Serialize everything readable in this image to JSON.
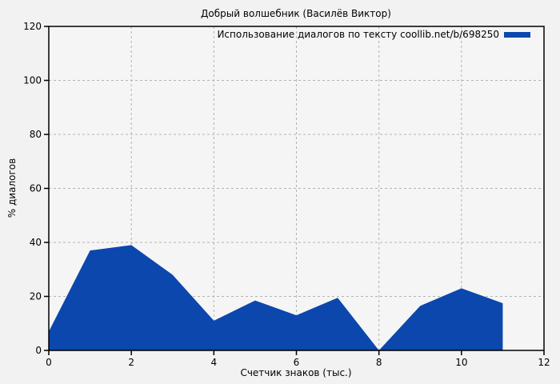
{
  "chart_data": {
    "type": "area",
    "title": "Добрый волшебник (Василёв Виктор)",
    "legend": "Использование диалогов по тексту coollib.net/b/698250",
    "xlabel": "Счетчик знаков (тыс.)",
    "ylabel": "% диалогов",
    "x": [
      0,
      1,
      2,
      3,
      4,
      5,
      6,
      7,
      8,
      9,
      10,
      11
    ],
    "values": [
      7,
      37,
      39,
      28,
      11,
      18.5,
      13,
      19.5,
      0,
      16.5,
      23,
      17.5
    ],
    "xlim": [
      0,
      12
    ],
    "ylim": [
      0,
      120
    ],
    "xticks": [
      0,
      2,
      4,
      6,
      8,
      10,
      12
    ],
    "yticks": [
      0,
      20,
      40,
      60,
      80,
      100,
      120
    ],
    "grid": true,
    "legend_position": "top-right",
    "colors": {
      "fill": "#0b47ad",
      "grid": "#b3b3b3",
      "border": "#000000",
      "background": "#f2f2f2",
      "plot_background": "#f5f5f5"
    }
  }
}
